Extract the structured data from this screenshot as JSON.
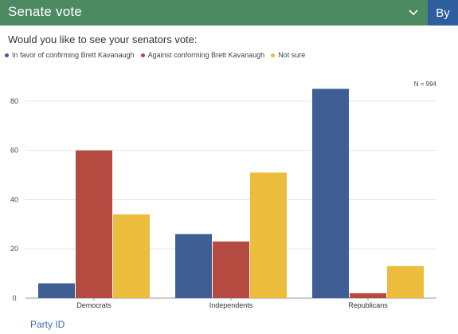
{
  "header": {
    "title": "Senate vote",
    "by_label": "By",
    "color": "#4c8a62",
    "by_color": "#2f5e9e"
  },
  "question": "Would you like to see your senators vote:",
  "chart_data": {
    "type": "bar",
    "categories": [
      "Democrats",
      "Independents",
      "Republicans"
    ],
    "series": [
      {
        "name": "In favor of confirming Brett Kavanaugh",
        "color": "#3f5f94",
        "values": [
          6,
          26,
          85
        ]
      },
      {
        "name": "Against conforming Brett Kavanaugh",
        "color": "#b54a40",
        "values": [
          60,
          23,
          2
        ]
      },
      {
        "name": "Not sure",
        "color": "#ecbc3c",
        "values": [
          34,
          51,
          13
        ]
      }
    ],
    "ylim": [
      0,
      90
    ],
    "yticks": [
      0,
      20,
      40,
      60,
      80
    ],
    "annotation": "N = 994",
    "legend_position": "top-left",
    "grid": true
  },
  "footer": {
    "link_label": "Party ID"
  }
}
